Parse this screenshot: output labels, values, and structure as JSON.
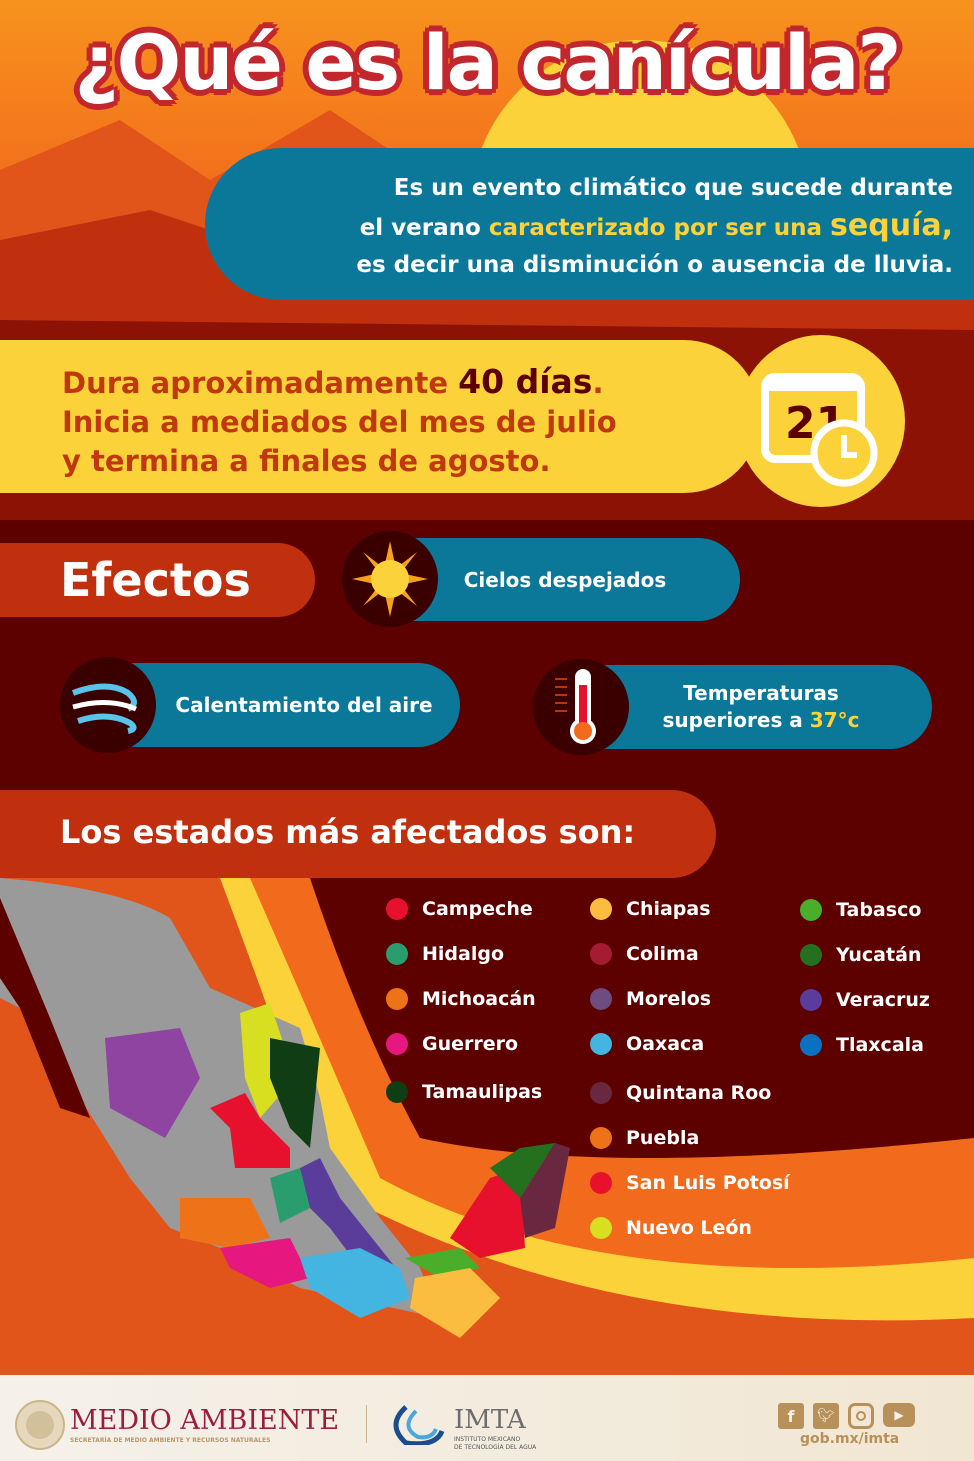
{
  "title": "¿Qué es la canícula?",
  "definition": {
    "line1": "Es un evento climático que sucede durante",
    "line2a": "el verano ",
    "line2b": "caracterizado por ser una ",
    "line2c": "sequía,",
    "line3": "es decir una disminución o ausencia de lluvia."
  },
  "duration": {
    "line1a": "Dura aproximadamente ",
    "line1b": "40 días",
    "line1c": ".",
    "line2": "Inicia a mediados del mes de julio",
    "line3": "y termina a finales de agosto.",
    "calendar_number": "21"
  },
  "effects": {
    "heading": "Efectos",
    "items": [
      {
        "label": "Cielos despejados",
        "icon": "sun-icon"
      },
      {
        "label": "Calentamiento del aire",
        "icon": "wind-icon"
      },
      {
        "label_a": "Temperaturas",
        "label_b": "superiores a ",
        "label_c": "37°c",
        "icon": "thermometer-icon"
      }
    ]
  },
  "states": {
    "heading": "Los estados más afectados son:",
    "items": [
      {
        "name": "Campeche",
        "color": "#e8112d"
      },
      {
        "name": "Hidalgo",
        "color": "#2a9d6f"
      },
      {
        "name": "Michoacán",
        "color": "#ee7318"
      },
      {
        "name": "Guerrero",
        "color": "#e6177f"
      },
      {
        "name": "Tamaulipas",
        "color": "#103d14"
      },
      {
        "name": "Chiapas",
        "color": "#fbbd3f"
      },
      {
        "name": "Colima",
        "color": "#a51b32"
      },
      {
        "name": "Morelos",
        "color": "#6e4b80"
      },
      {
        "name": "Oaxaca",
        "color": "#44b4e0"
      },
      {
        "name": "Quintana Roo",
        "color": "#6a2840"
      },
      {
        "name": "Puebla",
        "color": "#ee7318"
      },
      {
        "name": "San Luis Potosí",
        "color": "#e8112d"
      },
      {
        "name": "Nuevo León",
        "color": "#d8de20"
      },
      {
        "name": "Tabasco",
        "color": "#4aae2a"
      },
      {
        "name": "Yucatán",
        "color": "#25701f"
      },
      {
        "name": "Veracruz",
        "color": "#5a3d9a"
      },
      {
        "name": "Tlaxcala",
        "color": "#0a71c0"
      }
    ]
  },
  "footer": {
    "medio": "MEDIO AMBIENTE",
    "medio_sub": "SECRETARÍA DE MEDIO AMBIENTE Y RECURSOS NATURALES",
    "imta": "IMTA",
    "imta_sub1": "INSTITUTO MEXICANO",
    "imta_sub2": "DE TECNOLOGÍA DEL AGUA",
    "url": "gob.mx/imta",
    "social": [
      "facebook-icon",
      "twitter-icon",
      "instagram-icon",
      "youtube-icon"
    ]
  }
}
